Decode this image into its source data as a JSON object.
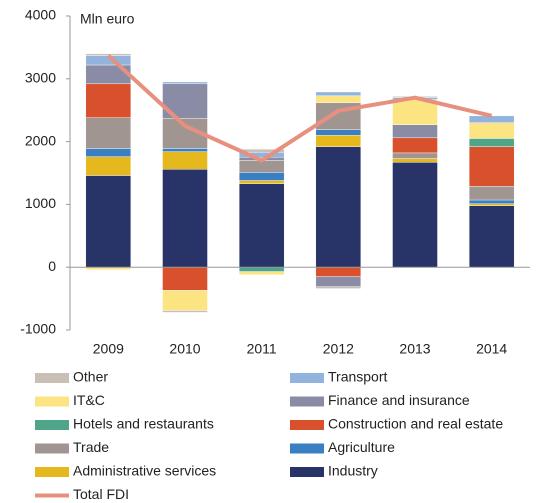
{
  "chart_data": {
    "type": "bar",
    "stacked": true,
    "y_label": "Mln euro",
    "categories": [
      "2009",
      "2010",
      "2011",
      "2012",
      "2013",
      "2014"
    ],
    "ylim": [
      -1000,
      4000
    ],
    "yticks": [
      -1000,
      0,
      1000,
      2000,
      3000,
      4000
    ],
    "series": [
      {
        "name": "Industry",
        "color": "#283467",
        "values": [
          1460,
          1560,
          1330,
          1920,
          1670,
          980
        ]
      },
      {
        "name": "Administrative services",
        "color": "#e5b81e",
        "values": [
          300,
          280,
          50,
          180,
          60,
          30
        ]
      },
      {
        "name": "Agriculture",
        "color": "#3a7fc1",
        "values": [
          130,
          50,
          130,
          90,
          0,
          60
        ]
      },
      {
        "name": "Trade",
        "color": "#a09590",
        "values": [
          490,
          480,
          190,
          430,
          90,
          220
        ]
      },
      {
        "name": "Construction and real estate",
        "color": "#d9512c",
        "values": [
          540,
          -370,
          0,
          -150,
          240,
          630
        ]
      },
      {
        "name": "Hotels and restaurants",
        "color": "#4ea58a",
        "values": [
          0,
          0,
          -70,
          0,
          0,
          130
        ]
      },
      {
        "name": "Finance and insurance",
        "color": "#8a8ca6",
        "values": [
          300,
          550,
          50,
          -160,
          210,
          0
        ]
      },
      {
        "name": "IT&C",
        "color": "#fde482",
        "values": [
          -40,
          -320,
          -50,
          110,
          400,
          250
        ]
      },
      {
        "name": "Transport",
        "color": "#92b4dc",
        "values": [
          150,
          30,
          80,
          60,
          30,
          110
        ]
      },
      {
        "name": "Other",
        "color": "#c9bfb5",
        "values": [
          30,
          -30,
          50,
          -30,
          20,
          0
        ]
      }
    ],
    "line": {
      "name": "Total FDI",
      "color": "#e8907f",
      "values": [
        3370,
        2250,
        1700,
        2490,
        2700,
        2410
      ]
    }
  }
}
